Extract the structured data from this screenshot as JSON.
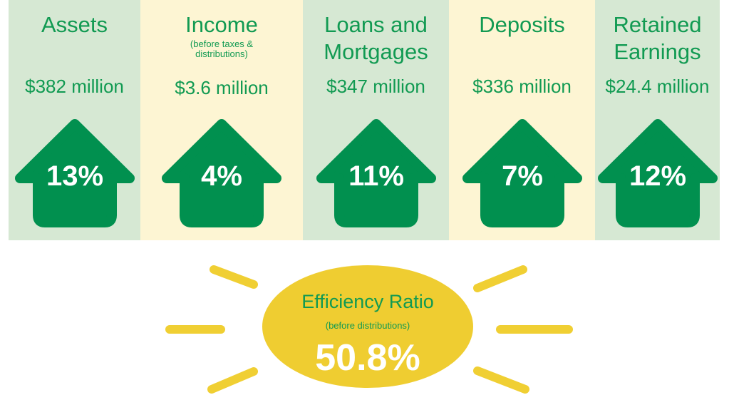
{
  "items": [
    {
      "label": "Assets",
      "amount": "$382 million",
      "change": "13%"
    },
    {
      "label": "Income",
      "sublabel": "(before taxes & distributions)",
      "amount": "$3.6 million",
      "change": "4%"
    },
    {
      "label": "Loans and Mortgages",
      "amount": "$347 million",
      "change": "11%"
    },
    {
      "label": "Deposits",
      "amount": "$336 million",
      "change": "7%"
    },
    {
      "label": "Retained Earnings",
      "amount": "$24.4 million",
      "change": "12%"
    }
  ],
  "efficiency": {
    "title": "Efficiency Ratio",
    "subtitle": "(before distributions)",
    "value": "50.8%"
  }
}
